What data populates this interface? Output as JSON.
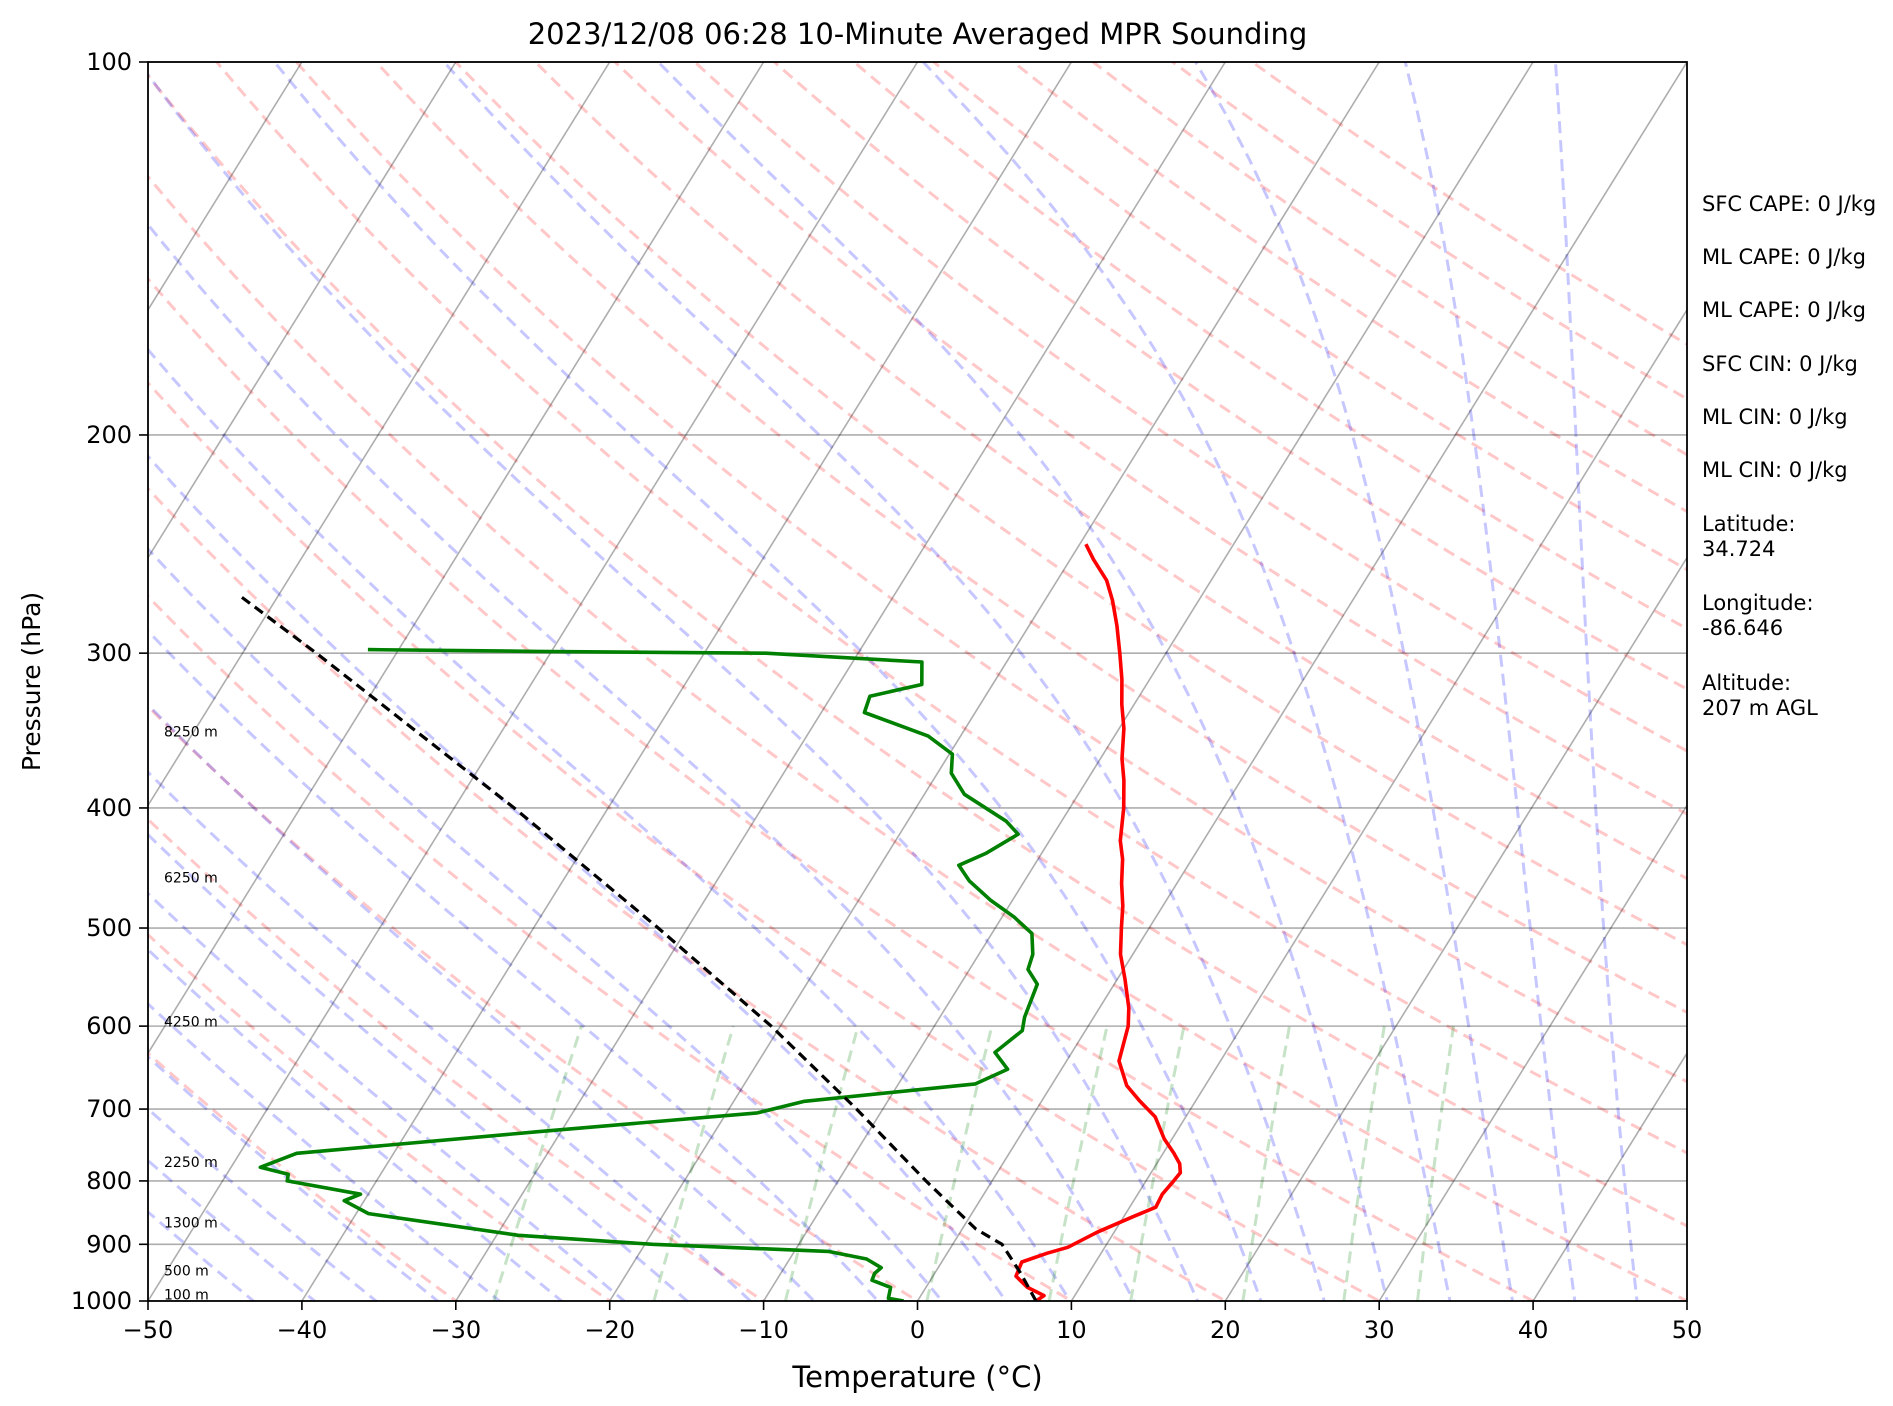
{
  "chart_data": {
    "type": "line",
    "title": "2023/12/08 06:28 10-Minute Averaged MPR Sounding",
    "xlabel": "Temperature (°C)",
    "ylabel": "Pressure (hPa)",
    "xlim": [
      -50,
      50
    ],
    "ylim": [
      1000,
      100
    ],
    "y_scale": "log",
    "x_ticks": [
      -50,
      -40,
      -30,
      -20,
      -10,
      0,
      10,
      20,
      30,
      40,
      50
    ],
    "x_tick_labels": [
      "−50",
      "−40",
      "−30",
      "−20",
      "−10",
      "0",
      "10",
      "20",
      "30",
      "40",
      "50"
    ],
    "y_ticks": [
      1000,
      900,
      800,
      700,
      600,
      500,
      400,
      300,
      200,
      100
    ],
    "y_tick_labels": [
      "1000",
      "900",
      "800",
      "700",
      "600",
      "500",
      "400",
      "300",
      "200",
      "100"
    ],
    "grid": true,
    "skew_t": true,
    "height_labels": [
      {
        "label": "100 m",
        "pressure": 988
      },
      {
        "label": "500 m",
        "pressure": 945
      },
      {
        "label": "1300 m",
        "pressure": 864
      },
      {
        "label": "2250 m",
        "pressure": 772
      },
      {
        "label": "4250 m",
        "pressure": 595
      },
      {
        "label": "6250 m",
        "pressure": 455
      },
      {
        "label": "8250 m",
        "pressure": 347
      }
    ],
    "series": [
      {
        "color": "#ff0000",
        "kind": "temperature",
        "points": [
          [
            1000,
            7.7
          ],
          [
            990,
            8.0
          ],
          [
            975,
            6.6
          ],
          [
            955,
            5.4
          ],
          [
            930,
            5.2
          ],
          [
            915,
            6.5
          ],
          [
            905,
            7.6
          ],
          [
            880,
            8.9
          ],
          [
            855,
            10.6
          ],
          [
            840,
            11.7
          ],
          [
            820,
            11.6
          ],
          [
            800,
            11.8
          ],
          [
            788,
            11.9
          ],
          [
            775,
            11.5
          ],
          [
            760,
            10.7
          ],
          [
            740,
            9.5
          ],
          [
            710,
            8.0
          ],
          [
            690,
            6.4
          ],
          [
            670,
            4.9
          ],
          [
            640,
            3.4
          ],
          [
            600,
            2.6
          ],
          [
            580,
            1.9
          ],
          [
            550,
            0.5
          ],
          [
            525,
            -0.8
          ],
          [
            500,
            -1.8
          ],
          [
            480,
            -2.6
          ],
          [
            460,
            -3.6
          ],
          [
            440,
            -4.5
          ],
          [
            425,
            -5.4
          ],
          [
            400,
            -6.5
          ],
          [
            380,
            -7.6
          ],
          [
            365,
            -8.6
          ],
          [
            345,
            -9.7
          ],
          [
            330,
            -10.8
          ],
          [
            315,
            -11.8
          ],
          [
            300,
            -13.0
          ],
          [
            285,
            -14.3
          ],
          [
            272,
            -15.6
          ],
          [
            262,
            -16.8
          ],
          [
            252,
            -18.5
          ],
          [
            245,
            -19.6
          ]
        ]
      },
      {
        "color": "#008000",
        "kind": "dewpoint",
        "points": [
          [
            1000,
            -0.9
          ],
          [
            995,
            -2.0
          ],
          [
            975,
            -2.3
          ],
          [
            962,
            -3.8
          ],
          [
            950,
            -3.9
          ],
          [
            940,
            -3.7
          ],
          [
            925,
            -5.0
          ],
          [
            912,
            -7.8
          ],
          [
            900,
            -19.5
          ],
          [
            885,
            -28.6
          ],
          [
            850,
            -39.2
          ],
          [
            830,
            -41.3
          ],
          [
            820,
            -40.5
          ],
          [
            800,
            -45.8
          ],
          [
            790,
            -46.0
          ],
          [
            780,
            -48.1
          ],
          [
            760,
            -46.3
          ],
          [
            730,
            -31.5
          ],
          [
            705,
            -18.0
          ],
          [
            690,
            -15.4
          ],
          [
            668,
            -5.0
          ],
          [
            650,
            -3.5
          ],
          [
            630,
            -5.0
          ],
          [
            605,
            -4.1
          ],
          [
            590,
            -4.5
          ],
          [
            555,
            -5.0
          ],
          [
            540,
            -6.2
          ],
          [
            525,
            -6.5
          ],
          [
            505,
            -7.4
          ],
          [
            490,
            -9.2
          ],
          [
            475,
            -11.4
          ],
          [
            458,
            -13.6
          ],
          [
            445,
            -14.9
          ],
          [
            435,
            -13.6
          ],
          [
            420,
            -12.3
          ],
          [
            410,
            -13.6
          ],
          [
            390,
            -17.4
          ],
          [
            375,
            -19.1
          ],
          [
            362,
            -19.8
          ],
          [
            350,
            -22.1
          ],
          [
            335,
            -27.2
          ],
          [
            325,
            -27.5
          ],
          [
            318,
            -24.6
          ],
          [
            305,
            -25.5
          ],
          [
            300,
            -36.0
          ],
          [
            299,
            -51.0
          ],
          [
            298,
            -62.0
          ]
        ]
      },
      {
        "color": "#000000",
        "kind": "parcel",
        "dashed": true,
        "points": [
          [
            1000,
            7.7
          ],
          [
            950,
            5.6
          ],
          [
            900,
            3.2
          ],
          [
            875,
            0.9
          ],
          [
            800,
            -4.3
          ],
          [
            700,
            -11.7
          ],
          [
            600,
            -20.6
          ],
          [
            500,
            -31.9
          ],
          [
            400,
            -46.1
          ],
          [
            300,
            -65.2
          ],
          [
            270,
            -72.4
          ]
        ]
      }
    ]
  },
  "side_text": [
    {
      "text": "SFC CAPE: 0 J/kg"
    },
    {
      "text": "ML CAPE: 0 J/kg"
    },
    {
      "text": "ML CAPE: 0 J/kg"
    },
    {
      "text": "SFC CIN: 0 J/kg"
    },
    {
      "text": "ML CIN: 0 J/kg"
    },
    {
      "text": "ML CIN: 0 J/kg"
    },
    {
      "text": "Latitude:",
      "value": "34.724"
    },
    {
      "text": "Longitude:",
      "value": "-86.646"
    },
    {
      "text": "Altitude:",
      "value": "207 m AGL"
    }
  ]
}
